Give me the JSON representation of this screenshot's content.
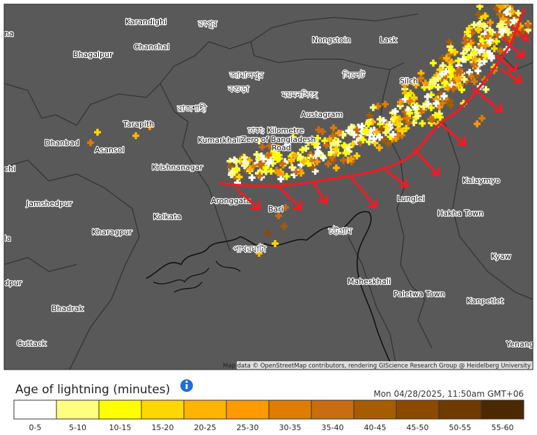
{
  "map": {
    "labels": [
      "na",
      "Karandighi",
      "রংপুর",
      "Nongstoin",
      "Lask",
      "Bhagalpur",
      "Chanchal",
      "জামালপুর",
      "বগুড়া",
      "ময়মনসিংহ",
      "সিলেট",
      "Silch",
      "রাজশাহী",
      "Tarapith",
      "Austagram",
      "ঢাকা; Kilometre",
      "Zero of Bangladesh",
      "Road",
      "Kumarkhali",
      "Dhanbad",
      "Asansol",
      "Krishnanagar",
      "Kalaymyo",
      "chi",
      "Jamshedpur",
      "Aronggata",
      "Lunglei",
      "Hakha Town",
      "Kolkata",
      "Kharagpur",
      "Bari",
      "চট্টগ্রাম",
      "la",
      "পাথরঘাটা",
      "Kyaw",
      "dpur",
      "Maheskhali",
      "Paletwa Town",
      "Kanpetlet",
      "Bhadrak",
      "Cuttack",
      "Yenang"
    ],
    "attribution": "Map data © OpenStreetMap contributors, rendering GIScience Research Group @ Heidelberg University"
  },
  "legend": {
    "title": "Age of lightning (minutes)",
    "timestamp": "Mon 04/28/2025, 11:50am GMT+06",
    "bins": [
      {
        "label": "0-5",
        "color": "#ffffff"
      },
      {
        "label": "5-10",
        "color": "#ffff80"
      },
      {
        "label": "10-15",
        "color": "#ffff00"
      },
      {
        "label": "15-20",
        "color": "#ffd700"
      },
      {
        "label": "20-25",
        "color": "#ffb400"
      },
      {
        "label": "25-30",
        "color": "#ff9a00"
      },
      {
        "label": "30-35",
        "color": "#e07c00"
      },
      {
        "label": "35-40",
        "color": "#c86d10"
      },
      {
        "label": "40-45",
        "color": "#a65c00"
      },
      {
        "label": "45-50",
        "color": "#8b4a00"
      },
      {
        "label": "50-55",
        "color": "#6e3a00"
      },
      {
        "label": "55-60",
        "color": "#4a2800"
      }
    ]
  }
}
